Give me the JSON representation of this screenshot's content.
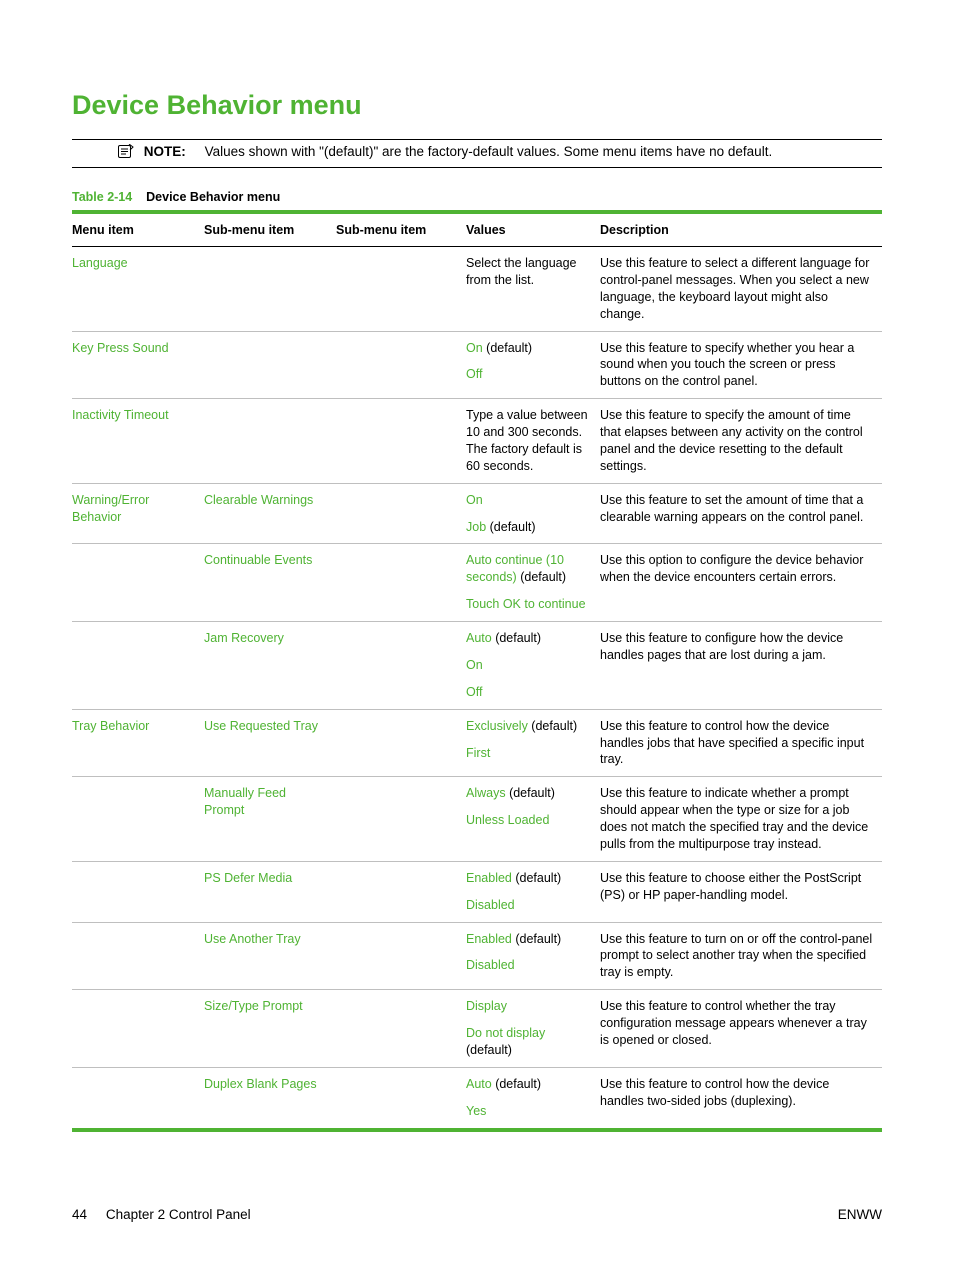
{
  "colors": {
    "accent": "#4fb333",
    "text": "#000000",
    "border_light": "#bfbfbf"
  },
  "typography": {
    "body_pt": 12.5,
    "title_pt": 27
  },
  "title": "Device Behavior menu",
  "note": {
    "label": "NOTE:",
    "text": "Values shown with \"(default)\" are the factory-default values. Some menu items have no default."
  },
  "table_caption": {
    "number": "Table 2-14",
    "title": "Device Behavior menu"
  },
  "columns": [
    "Menu item",
    "Sub-menu item",
    "Sub-menu item",
    "Values",
    "Description"
  ],
  "rows": [
    {
      "menu_item": "Language",
      "sub1": "",
      "sub2": "",
      "values": [
        {
          "opt": "",
          "plain": "Select the language from the list."
        }
      ],
      "description": "Use this feature to select a different language for control-panel messages. When you select a new language, the keyboard layout might also change."
    },
    {
      "menu_item": "Key Press Sound",
      "sub1": "",
      "sub2": "",
      "values": [
        {
          "opt": "On",
          "suffix": " (default)"
        },
        {
          "opt": "Off",
          "suffix": ""
        }
      ],
      "description": "Use this feature to specify whether you hear a sound when you touch the screen or press buttons on the control panel."
    },
    {
      "menu_item": "Inactivity Timeout",
      "sub1": "",
      "sub2": "",
      "values": [
        {
          "opt": "",
          "plain": "Type a value between 10 and 300 seconds. The factory default is 60 seconds."
        }
      ],
      "description": "Use this feature to specify the amount of time that elapses between any activity on the control panel and the device resetting to the default settings."
    },
    {
      "menu_item": "Warning/Error Behavior",
      "sub1": "Clearable Warnings",
      "sub2": "",
      "values": [
        {
          "opt": "On",
          "suffix": ""
        },
        {
          "opt": "Job",
          "suffix": " (default)"
        }
      ],
      "description": "Use this feature to set the amount of time that a clearable warning appears on the control panel."
    },
    {
      "menu_item": "",
      "sub1": "Continuable Events",
      "sub2": "",
      "values": [
        {
          "opt": "Auto continue (10 seconds)",
          "suffix": " (default)"
        },
        {
          "opt": "Touch OK to continue",
          "suffix": ""
        }
      ],
      "description": "Use this option to configure the device behavior when the device encounters certain errors."
    },
    {
      "menu_item": "",
      "sub1": "Jam Recovery",
      "sub2": "",
      "values": [
        {
          "opt": "Auto",
          "suffix": " (default)"
        },
        {
          "opt": "On",
          "suffix": ""
        },
        {
          "opt": "Off",
          "suffix": ""
        }
      ],
      "description": "Use this feature to configure how the device handles pages that are lost during a jam."
    },
    {
      "menu_item": "Tray Behavior",
      "sub1": "Use Requested Tray",
      "sub2": "",
      "values": [
        {
          "opt": "Exclusively",
          "suffix": " (default)"
        },
        {
          "opt": "First",
          "suffix": ""
        }
      ],
      "description": "Use this feature to control how the device handles jobs that have specified a specific input tray."
    },
    {
      "menu_item": "",
      "sub1": "Manually Feed Prompt",
      "sub2": "",
      "values": [
        {
          "opt": "Always",
          "suffix": " (default)"
        },
        {
          "opt": "Unless Loaded",
          "suffix": ""
        }
      ],
      "description": "Use this feature to indicate whether a prompt should appear when the type or size for a job does not match the specified tray and the device pulls from the multipurpose tray instead."
    },
    {
      "menu_item": "",
      "sub1": "PS Defer Media",
      "sub2": "",
      "values": [
        {
          "opt": "Enabled",
          "suffix": " (default)"
        },
        {
          "opt": "Disabled",
          "suffix": ""
        }
      ],
      "description": "Use this feature to choose either the PostScript (PS) or HP paper-handling model."
    },
    {
      "menu_item": "",
      "sub1": "Use Another Tray",
      "sub2": "",
      "values": [
        {
          "opt": "Enabled",
          "suffix": " (default)"
        },
        {
          "opt": "Disabled",
          "suffix": ""
        }
      ],
      "description": "Use this feature to turn on or off the control-panel prompt to select another tray when the specified tray is empty."
    },
    {
      "menu_item": "",
      "sub1": "Size/Type Prompt",
      "sub2": "",
      "values": [
        {
          "opt": "Display",
          "suffix": ""
        },
        {
          "opt": "Do not display",
          "suffix": " (default)"
        }
      ],
      "description": "Use this feature to control whether the tray configuration message appears whenever a tray is opened or closed."
    },
    {
      "menu_item": "",
      "sub1": "Duplex Blank Pages",
      "sub2": "",
      "values": [
        {
          "opt": "Auto",
          "suffix": " (default)"
        },
        {
          "opt": "Yes",
          "suffix": ""
        }
      ],
      "description": "Use this feature to control how the device handles two-sided jobs (duplexing)."
    }
  ],
  "footer": {
    "page_number": "44",
    "chapter": "Chapter 2   Control Panel",
    "right": "ENWW"
  }
}
